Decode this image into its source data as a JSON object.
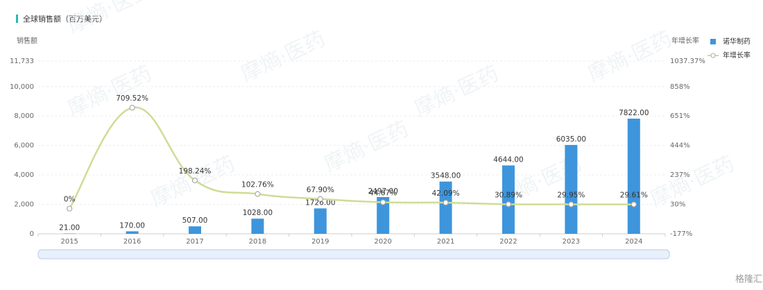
{
  "chart_data": {
    "type": "bar-line",
    "title": "全球销售额（百万美元）",
    "y_label": "销售额",
    "y2_label": "年增长率",
    "watermark": "摩熵·医药",
    "brand": "格隆汇",
    "categories": [
      "2015",
      "2016",
      "2017",
      "2018",
      "2019",
      "2020",
      "2021",
      "2022",
      "2023",
      "2024"
    ],
    "series": [
      {
        "name": "诺华制药",
        "type": "bar",
        "color": "#3e95dc",
        "values": [
          21,
          170,
          507,
          1028,
          1726,
          2497,
          3548,
          4644,
          6035,
          7822
        ],
        "value_labels": [
          "21.00",
          "170.00",
          "507.00",
          "1028.00",
          "1726.00",
          "2497.00",
          "3548.00",
          "4644.00",
          "6035.00",
          "7822.00"
        ]
      },
      {
        "name": "年增长率",
        "type": "line",
        "axis": "y2",
        "color": "#cfdc95",
        "values": [
          0,
          709.52,
          198.24,
          102.76,
          67.9,
          44.67,
          42.09,
          30.89,
          29.95,
          29.61
        ],
        "value_labels": [
          "0%",
          "709.52%",
          "198.24%",
          "102.76%",
          "67.90%",
          "44.67%",
          "42.09%",
          "30.89%",
          "29.95%",
          "29.61%"
        ]
      }
    ],
    "ylim": [
      0,
      11733
    ],
    "yticks": [
      0,
      {
        "value": 2000,
        "label": "2,000"
      },
      {
        "value": 4000,
        "label": "4,000"
      },
      {
        "value": 6000,
        "label": "6,000"
      },
      {
        "value": 8000,
        "label": "8,000"
      },
      {
        "value": 10000,
        "label": "10,000"
      },
      {
        "value": 11733,
        "label": "11,733"
      }
    ],
    "y2lim": [
      -177,
      1037.37
    ],
    "y2ticks": [
      {
        "value": -177,
        "label": "-177%"
      },
      {
        "value": 30,
        "label": "30%"
      },
      {
        "value": 237,
        "label": "237%"
      },
      {
        "value": 444,
        "label": "444%"
      },
      {
        "value": 651,
        "label": "651%"
      },
      {
        "value": 858,
        "label": "858%"
      },
      {
        "value": 1037.37,
        "label": "1037.37%"
      }
    ],
    "grid": true
  }
}
